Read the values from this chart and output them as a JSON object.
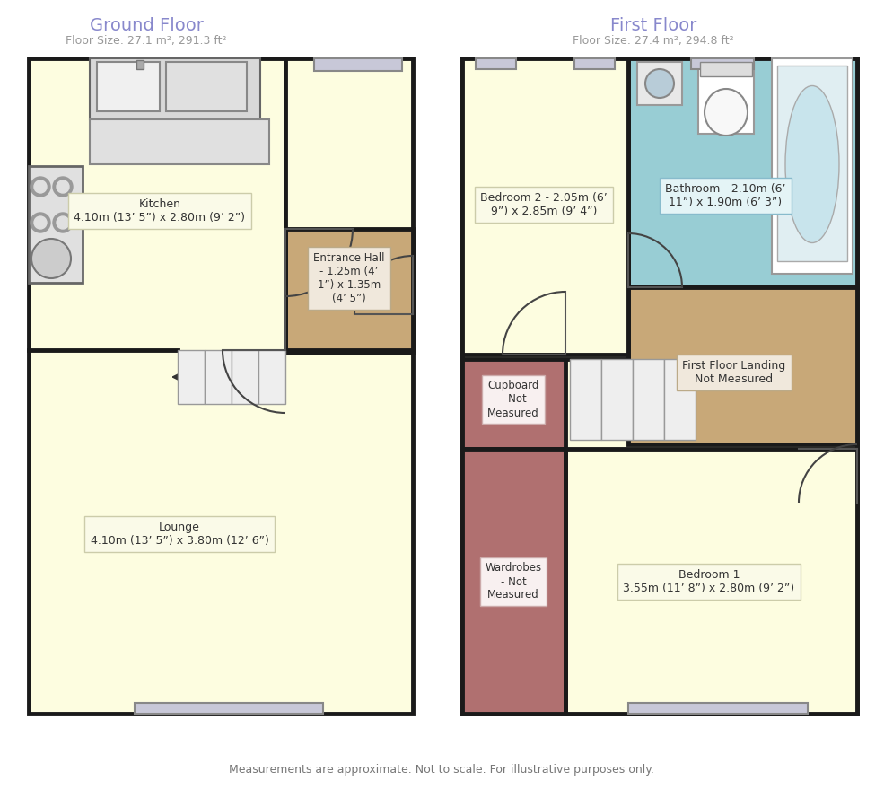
{
  "bg_color": "#ffffff",
  "floor_color": "#fdfde0",
  "wall_color": "#1a1a1a",
  "entrance_color": "#c8a878",
  "bathroom_color": "#98cdd4",
  "landing_color": "#c8a878",
  "cupboard_color": "#b07070",
  "label_box_color": "#f0f0f0",
  "ground_title": "Ground Floor",
  "ground_subtitle": "Floor Size: 27.1 m², 291.3 ft²",
  "first_title": "First Floor",
  "first_subtitle": "Floor Size: 27.4 m², 294.8 ft²",
  "title_color": "#8888cc",
  "subtitle_color": "#999999",
  "footer": "Measurements are approximate. Not to scale. For illustrative purposes only.",
  "kitchen_label": "Kitchen\n4.10m (13’ 5”) x 2.80m (9’ 2”)",
  "lounge_label": "Lounge\n4.10m (13’ 5”) x 3.80m (12’ 6”)",
  "entrance_label": "Entrance Hall\n- 1.25m (4’\n1”) x 1.35m\n(4’ 5”)",
  "bedroom2_label": "Bedroom 2 - 2.05m (6’\n9”) x 2.85m (9’ 4”)",
  "bathroom_label": "Bathroom - 2.10m (6’\n11”) x 1.90m (6’ 3”)",
  "landing_label": "First Floor Landing\nNot Measured",
  "cupboard_label": "Cupboard\n- Not\nMeasured",
  "wardrobe_label": "Wardrobes\n- Not\nMeasured",
  "bedroom1_label": "Bedroom 1\n3.55m (11’ 8”) x 2.80m (9’ 2”)"
}
